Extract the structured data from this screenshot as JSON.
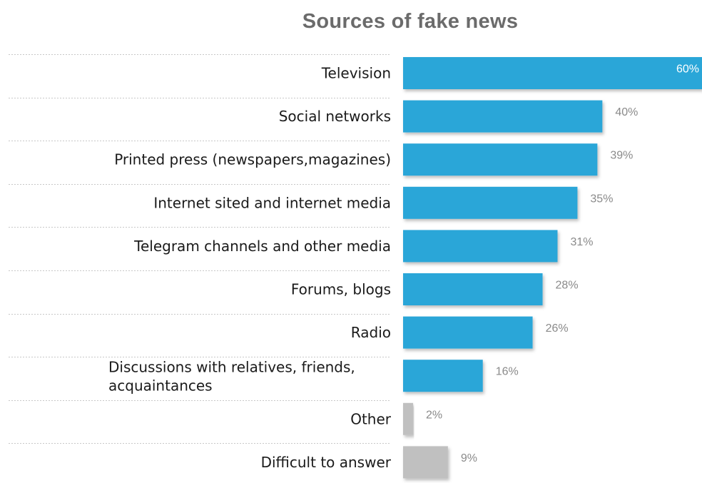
{
  "chart_data": {
    "type": "bar",
    "orientation": "horizontal",
    "title": "Sources of fake news",
    "categories": [
      "Television",
      "Social networks",
      "Printed press (newspapers,magazines)",
      "Internet sited and internet media",
      "Telegram channels and other media",
      "Forums, blogs",
      "Radio",
      "Discussions with relatives, friends, acquaintances",
      "Other",
      "Difficult to answer"
    ],
    "category_lines": [
      [
        "Television"
      ],
      [
        "Social networks"
      ],
      [
        "Printed press (newspapers,magazines)"
      ],
      [
        "Internet sited and internet media"
      ],
      [
        "Telegram channels and other media"
      ],
      [
        "Forums, blogs"
      ],
      [
        "Radio"
      ],
      [
        "Discussions with relatives, friends,",
        "acquaintances"
      ],
      [
        "Other"
      ],
      [
        "Difficult to answer"
      ]
    ],
    "values": [
      60,
      40,
      39,
      35,
      31,
      28,
      26,
      16,
      2,
      9
    ],
    "value_labels": [
      "60%",
      "40%",
      "39%",
      "35%",
      "31%",
      "28%",
      "26%",
      "16%",
      "2%",
      "9%"
    ],
    "unit": "%",
    "colors": [
      "#2ba6d8",
      "#2ba6d8",
      "#2ba6d8",
      "#2ba6d8",
      "#2ba6d8",
      "#2ba6d8",
      "#2ba6d8",
      "#2ba6d8",
      "#c0c0c0",
      "#c0c0c0"
    ],
    "xlim": [
      0,
      60
    ],
    "grid": false,
    "legend": "none"
  }
}
